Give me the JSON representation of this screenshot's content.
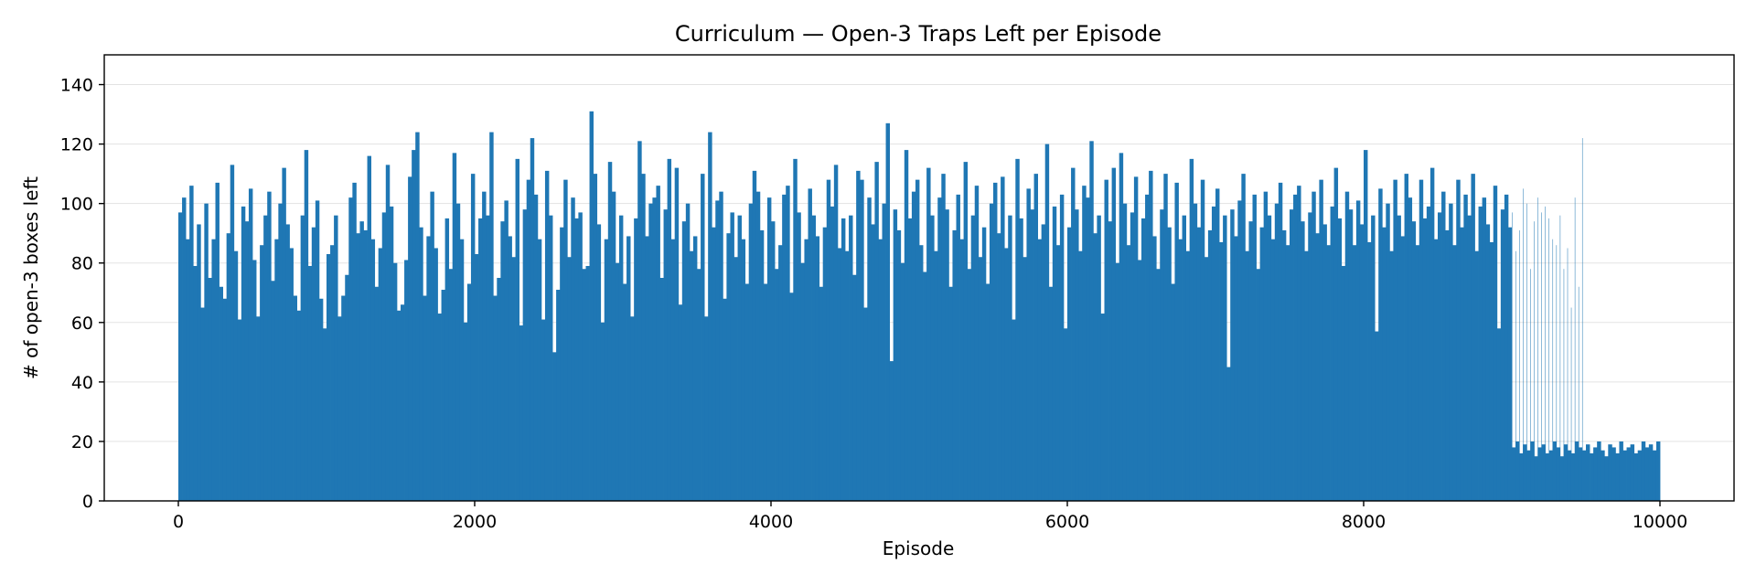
{
  "chart_data": {
    "type": "bar",
    "title": "Curriculum — Open-3 Traps Left per Episode",
    "xlabel": "Episode",
    "ylabel": "# of open-3 boxes left",
    "xlim": [
      -500,
      10500
    ],
    "ylim": [
      0,
      150
    ],
    "xticks": [
      0,
      2000,
      4000,
      6000,
      8000,
      10000
    ],
    "xtick_labels": [
      "0",
      "2000",
      "4000",
      "6000",
      "8000",
      "10000"
    ],
    "yticks": [
      0,
      20,
      40,
      60,
      80,
      100,
      120,
      140
    ],
    "ytick_labels": [
      "0",
      "20",
      "40",
      "60",
      "80",
      "100",
      "120",
      "140"
    ],
    "grid": {
      "y": true,
      "x": false
    },
    "bar_color": "#1f77b4",
    "segments": [
      {
        "episode_start": 0,
        "episode_end": 9000,
        "episode_step": 25,
        "values": [
          97,
          102,
          88,
          106,
          79,
          93,
          65,
          100,
          75,
          88,
          107,
          72,
          68,
          90,
          113,
          84,
          61,
          99,
          94,
          105,
          81,
          62,
          86,
          96,
          104,
          74,
          88,
          100,
          112,
          93,
          85,
          69,
          64,
          96,
          118,
          79,
          92,
          101,
          68,
          58,
          83,
          86,
          96,
          62,
          69,
          76,
          102,
          107,
          90,
          94,
          91,
          116,
          88,
          72,
          85,
          97,
          113,
          99,
          80,
          64,
          66,
          81,
          109,
          118,
          124,
          92,
          69,
          89,
          104,
          85,
          63,
          71,
          95,
          78,
          117,
          100,
          88,
          60,
          73,
          110,
          83,
          95,
          104,
          96,
          124,
          69,
          75,
          94,
          101,
          89,
          82,
          115,
          59,
          98,
          108,
          122,
          103,
          88,
          61,
          111,
          96,
          50,
          71,
          92,
          108,
          82,
          102,
          95,
          97,
          78,
          79,
          131,
          110,
          93,
          60,
          88,
          114,
          104,
          80,
          96,
          73,
          89,
          62,
          95,
          121,
          110,
          89,
          100,
          102,
          106,
          75,
          98,
          115,
          88,
          112,
          66,
          94,
          100,
          84,
          89,
          78,
          110,
          62,
          124,
          92,
          101,
          104,
          68,
          90,
          97,
          82,
          96,
          88,
          73,
          100,
          111,
          104,
          91,
          73,
          102,
          94,
          78,
          86,
          103,
          106,
          70,
          115,
          97,
          80,
          88,
          105,
          96,
          89,
          72,
          92,
          108,
          99,
          113,
          85,
          95,
          84,
          96,
          76,
          111,
          108,
          65,
          102,
          93,
          114,
          88,
          100,
          127,
          47,
          98,
          91,
          80,
          118,
          95,
          104,
          108,
          86,
          77,
          112,
          96,
          84,
          102,
          110,
          98,
          72,
          91,
          103,
          88,
          114,
          78,
          96,
          106,
          82,
          92,
          73,
          100,
          107,
          90,
          109,
          85,
          96,
          61,
          115,
          95,
          82,
          105,
          98,
          110,
          88,
          93,
          120,
          72,
          99,
          86,
          103,
          58,
          92,
          112,
          98,
          84,
          106,
          102,
          121,
          90,
          96,
          63,
          108,
          94,
          112,
          80,
          117,
          100,
          86,
          97,
          109,
          81,
          95,
          103,
          111,
          89,
          78,
          98,
          110,
          92,
          73,
          107,
          88,
          96,
          84,
          115,
          100,
          92,
          108,
          82,
          91,
          99,
          105,
          87,
          96,
          45,
          98,
          89,
          101,
          110,
          84,
          94,
          103,
          78,
          92,
          104,
          96,
          88,
          100,
          107,
          91,
          86,
          98,
          103,
          106,
          94,
          84,
          97,
          104,
          90,
          108,
          93,
          86,
          99,
          112,
          95,
          79,
          104,
          98,
          86,
          101,
          93,
          118,
          87,
          96,
          57,
          105,
          92,
          100,
          84,
          108,
          96,
          89,
          110,
          102,
          94,
          86,
          108,
          95,
          99,
          112,
          88,
          97,
          104,
          91,
          100,
          86,
          108,
          92,
          103,
          96,
          110,
          84,
          99,
          102,
          93,
          87,
          106,
          58,
          98,
          103,
          92,
          97,
          84,
          91,
          105,
          100,
          78,
          94,
          102,
          97,
          99,
          95,
          88,
          86,
          96,
          78,
          85,
          65,
          102,
          72,
          122
        ]
      },
      {
        "episode_start": 9000,
        "episode_end": 10000,
        "episode_step": 25,
        "values": [
          18,
          20,
          16,
          19,
          17,
          20,
          15,
          18,
          19,
          16,
          17,
          20,
          18,
          15,
          19,
          17,
          16,
          20,
          18,
          17,
          19,
          16,
          18,
          20,
          17,
          15,
          19,
          18,
          16,
          20,
          17,
          18,
          19,
          16,
          17,
          20,
          18,
          19,
          17,
          20
        ]
      }
    ]
  }
}
